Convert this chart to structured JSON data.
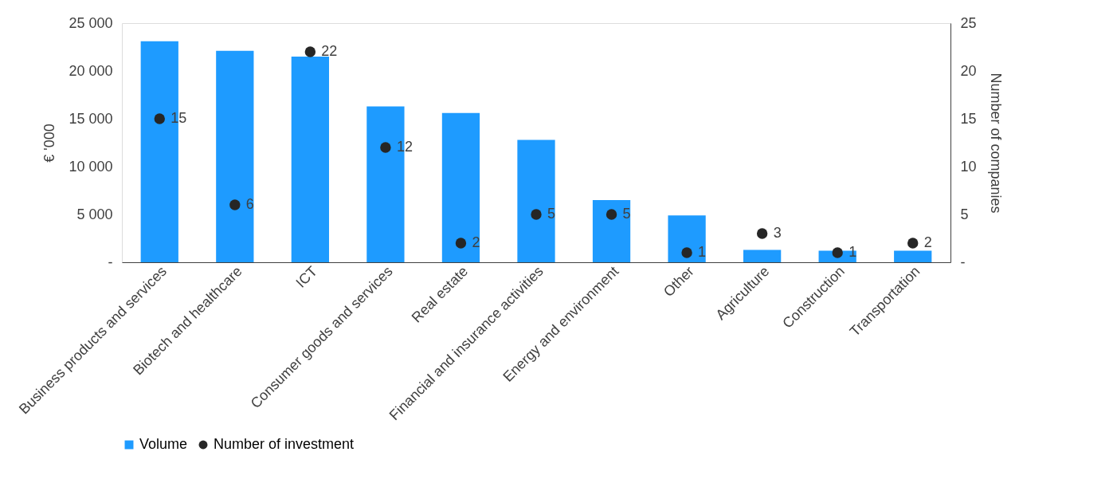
{
  "chart_data": {
    "type": "bar",
    "ylabel": "€ '000",
    "y2label": "Number of companies",
    "categories": [
      "Business products and services",
      "Biotech and healthcare",
      "ICT",
      "Consumer goods and services",
      "Real estate",
      "Financial and insurance activities",
      "Energy and environment",
      "Other",
      "Agriculture",
      "Construction",
      "Transportation"
    ],
    "series": [
      {
        "name": "Volume",
        "color": "#1e9bff",
        "values": [
          23100,
          22100,
          21500,
          16300,
          15600,
          12800,
          6500,
          4900,
          1300,
          1200,
          1200
        ]
      },
      {
        "name": "Number of investment",
        "type": "scatter",
        "axis": "y2",
        "color": "#262626",
        "values": [
          15,
          6,
          22,
          12,
          2,
          5,
          5,
          1,
          3,
          1,
          2
        ],
        "data_labels": true
      }
    ],
    "ylim": [
      0,
      25000
    ],
    "yticks": [
      {
        "value": 0,
        "label": "-"
      },
      {
        "value": 5000,
        "label": "5 000"
      },
      {
        "value": 10000,
        "label": "10 000"
      },
      {
        "value": 15000,
        "label": "15 000"
      },
      {
        "value": 20000,
        "label": "20 000"
      },
      {
        "value": 25000,
        "label": "25 000"
      }
    ],
    "y2lim": [
      0,
      25
    ],
    "y2ticks": [
      {
        "value": 0,
        "label": "-"
      },
      5,
      10,
      15,
      20,
      25
    ],
    "legend": "bottom",
    "grid": false,
    "marker": "circle"
  }
}
